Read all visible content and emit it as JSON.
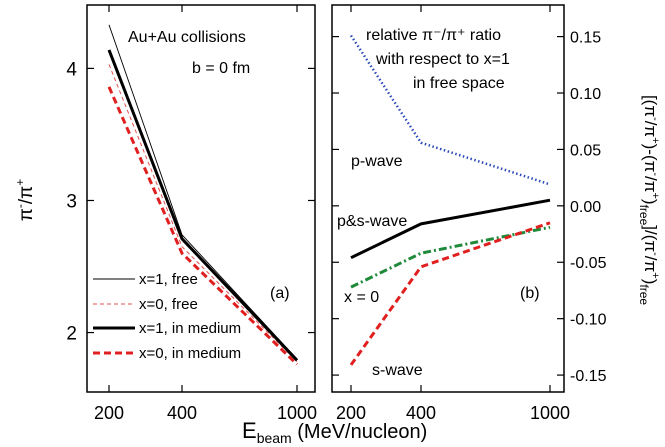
{
  "chart_data": [
    {
      "type": "line",
      "panel_label": "(a)",
      "annotations": [
        "Au+Au collisions",
        "b = 0 fm"
      ],
      "xlabel": "E",
      "xlabel_sub": "beam",
      "xlabel_unit": " (MeV/nucleon)",
      "ylabel": "π⁻/π⁺",
      "x": [
        200,
        400,
        1000
      ],
      "x_ticks": [
        "200",
        "400",
        "1000"
      ],
      "y_ticks": [
        2,
        3,
        4
      ],
      "ylim": [
        1.55,
        4.48
      ],
      "series": [
        {
          "name": "x=1, free",
          "values": [
            4.33,
            2.74,
            1.8
          ],
          "color": "#000000",
          "style": "thin-solid"
        },
        {
          "name": "x=0, free",
          "values": [
            4.03,
            2.65,
            1.78
          ],
          "color": "#e05050",
          "style": "thin-dashed"
        },
        {
          "name": "x=1, in medium",
          "values": [
            4.14,
            2.71,
            1.79
          ],
          "color": "#000000",
          "style": "thick-solid"
        },
        {
          "name": "x=0, in medium",
          "values": [
            3.86,
            2.6,
            1.76
          ],
          "color": "#e02020",
          "style": "thick-dashed"
        }
      ],
      "legend": "bottom-left"
    },
    {
      "type": "line",
      "panel_label": "(b)",
      "annotations": [
        "relative π⁻/π⁺ ratio",
        "with respect to x=1",
        "in free space"
      ],
      "ylabel": "[(π⁻/π⁺)-(π⁻/π⁺)free]/(π⁻/π⁺)free",
      "x": [
        200,
        400,
        1000
      ],
      "x_ticks": [
        "200",
        "400",
        "1000"
      ],
      "y_ticks": [
        "0.15",
        "0.10",
        "0.05",
        "0.00",
        "-0.05",
        "-0.10",
        "-0.15"
      ],
      "y_tick_values": [
        0.15,
        0.1,
        0.05,
        0.0,
        -0.05,
        -0.1,
        -0.15
      ],
      "ylim": [
        -0.165,
        0.178
      ],
      "series": [
        {
          "name": "p-wave",
          "values": [
            0.151,
            0.056,
            0.019
          ],
          "color": "#2b4bb8",
          "style": "dotted"
        },
        {
          "name": "p&s-wave",
          "values": [
            -0.046,
            -0.016,
            0.005
          ],
          "color": "#000000",
          "style": "thick-solid"
        },
        {
          "name": "x = 0",
          "values": [
            -0.072,
            -0.042,
            -0.019
          ],
          "color": "#1f8a3a",
          "style": "dash-dot"
        },
        {
          "name": "s-wave",
          "values": [
            -0.141,
            -0.054,
            -0.015
          ],
          "color": "#e02020",
          "style": "thick-dashed"
        }
      ]
    }
  ]
}
